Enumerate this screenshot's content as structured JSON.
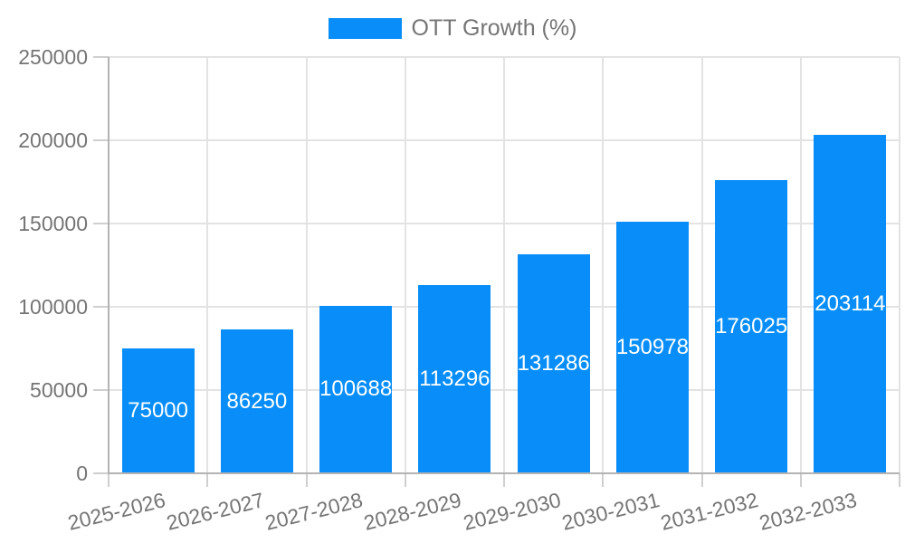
{
  "chart_data": {
    "type": "bar",
    "title": "",
    "xlabel": "",
    "ylabel": "",
    "legend": "OTT Growth (%)",
    "legend_position": "top",
    "grid": true,
    "categories": [
      "2025-2026",
      "2026-2027",
      "2027-2028",
      "2028-2029",
      "2029-2030",
      "2030-2031",
      "2031-2032",
      "2032-2033"
    ],
    "values": [
      75000,
      86250,
      100688,
      113296,
      131286,
      150978,
      176025,
      203114
    ],
    "ylim": [
      0,
      250000
    ],
    "ytick_step": 50000,
    "ytick_labels": [
      "0",
      "50000",
      "100000",
      "150000",
      "200000",
      "250000"
    ],
    "colors": {
      "bar": "#098ef9",
      "value_label": "#ffffff",
      "axis_text": "#757575",
      "gridline": "#e3e3e3",
      "axis_line": "#b3b3b3",
      "tick": "#cfcfcf",
      "background": "#ffffff"
    }
  }
}
